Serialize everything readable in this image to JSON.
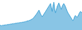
{
  "chart_data": {
    "type": "area",
    "values": [
      18,
      17,
      16,
      18,
      17,
      19,
      18,
      20,
      19,
      21,
      20,
      22,
      21,
      23,
      22,
      24,
      23,
      25,
      24,
      26,
      25,
      27,
      26,
      28,
      27,
      29,
      28,
      30,
      29,
      31,
      30,
      33,
      32,
      35,
      34,
      36,
      37,
      38,
      40,
      42,
      44,
      48,
      52,
      56,
      60,
      65,
      70,
      75,
      68,
      60,
      55,
      50,
      55,
      60,
      65,
      70,
      75,
      80,
      85,
      90,
      95,
      100,
      85,
      70,
      90,
      105,
      80,
      65,
      75,
      88,
      95,
      102,
      95,
      85,
      78,
      88,
      95,
      100,
      95,
      88,
      80,
      72,
      65,
      60,
      55,
      50,
      45,
      40,
      35,
      40,
      50,
      55,
      52,
      48,
      52,
      58,
      65,
      70,
      68,
      65
    ],
    "color": "#3a9fd4",
    "xlim": [
      0,
      99
    ],
    "ylim": [
      0,
      113.4
    ],
    "grid": false,
    "tick_labels": false
  }
}
